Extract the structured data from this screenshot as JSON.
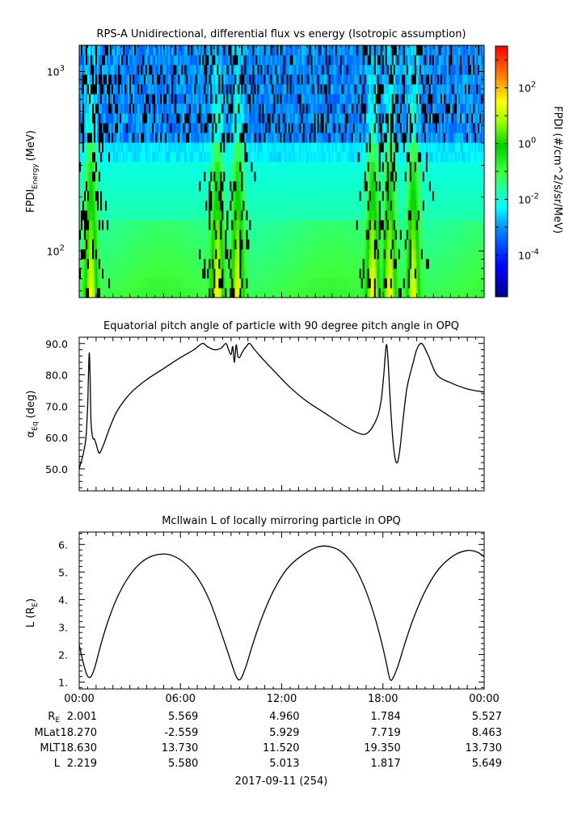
{
  "figure": {
    "date_label": "2017-09-11 (254)",
    "x_ticks": [
      "00:00",
      "06:00",
      "12:00",
      "18:00",
      "00:00"
    ]
  },
  "footer": {
    "rows": [
      {
        "label": "R",
        "label_sub": "E",
        "values": [
          "2.001",
          "5.569",
          "4.960",
          "1.784",
          "5.527"
        ]
      },
      {
        "label": "MLat",
        "label_sub": "",
        "values": [
          "18.270",
          "-2.559",
          "5.929",
          "7.719",
          "8.463"
        ]
      },
      {
        "label": "MLT",
        "label_sub": "",
        "values": [
          "18.630",
          "13.730",
          "11.520",
          "19.350",
          "13.730"
        ]
      },
      {
        "label": "L",
        "label_sub": "",
        "values": [
          "2.219",
          "5.580",
          "5.013",
          "1.817",
          "5.649"
        ]
      }
    ]
  },
  "chart_data": [
    {
      "type": "heatmap",
      "title": "RPS-A Unidirectional, differential flux vs energy (Isotropic assumption)",
      "ylabel": "FPDI",
      "ylabel_sub": "Energy",
      "ylabel_unit": "(MeV)",
      "yscale": "log",
      "ylim": [
        55,
        1400
      ],
      "y_ticks": [
        {
          "value": 100,
          "base": "10",
          "exp": "2"
        },
        {
          "value": 1000,
          "base": "10",
          "exp": "3"
        }
      ],
      "colorbar": {
        "label": "FPDI (#/cm^2/s/sr/MeV)",
        "scale": "log",
        "range_exp": [
          -5.5,
          3.5
        ],
        "ticks": [
          {
            "exp": 2,
            "base": "10",
            "sup": "2"
          },
          {
            "exp": 0,
            "base": "10",
            "sup": "0"
          },
          {
            "exp": -2,
            "base": "10",
            "sup": "-2"
          },
          {
            "exp": -4,
            "base": "10",
            "sup": "-4"
          }
        ]
      },
      "passes_hours": [
        0.7,
        8.2,
        9.4,
        17.4,
        18.4,
        19.8
      ],
      "description_values": "Flux high (10^0 to 10^1) at low energies near perigee passes, ~10^-1 across mid energies, ~10^-3 at highest energies with many fill gaps"
    },
    {
      "type": "line",
      "title": "Equatorial pitch angle of particle with 90 degree pitch angle in OPQ",
      "ylabel": "α",
      "ylabel_sub": "Eq",
      "ylabel_unit": "(deg)",
      "ylim": [
        43,
        92
      ],
      "y_ticks": [
        50,
        60,
        70,
        80,
        90
      ],
      "x_hours": [
        0,
        0.1,
        0.25,
        0.4,
        0.5,
        0.55,
        0.6,
        0.65,
        0.7,
        0.8,
        0.9,
        1.0,
        1.1,
        1.2,
        1.35,
        1.5,
        1.8,
        2.2,
        2.7,
        3.2,
        4.0,
        5.0,
        6.0,
        6.8,
        7.3,
        7.6,
        8.0,
        8.4,
        8.7,
        8.85,
        9.0,
        9.1,
        9.2,
        9.3,
        9.4,
        9.5,
        9.6,
        9.75,
        9.9,
        10.1,
        10.4,
        10.8,
        11.5,
        12.5,
        13.5,
        14.5,
        15.5,
        16.3,
        16.8,
        17.1,
        17.4,
        17.7,
        17.9,
        18.05,
        18.2,
        18.3,
        18.4,
        18.55,
        18.7,
        18.85,
        19.0,
        19.2,
        19.4,
        19.6,
        19.8,
        20.0,
        20.3,
        20.7,
        21.2,
        22.0,
        23.0,
        24.0
      ],
      "y_values": [
        50.0,
        52.0,
        55.0,
        60.0,
        70.0,
        80.0,
        87.0,
        78.0,
        65.0,
        60.0,
        59.5,
        58.0,
        56.0,
        55.0,
        56.5,
        58.5,
        63.0,
        68.0,
        72.0,
        75.0,
        78.5,
        82.0,
        85.5,
        88.0,
        90.0,
        89.0,
        88.0,
        88.5,
        90.0,
        88.0,
        86.5,
        89.0,
        84.0,
        89.5,
        86.0,
        85.5,
        86.5,
        88.0,
        89.0,
        90.0,
        88.0,
        85.5,
        81.5,
        76.0,
        71.5,
        68.0,
        64.5,
        62.0,
        61.0,
        61.5,
        63.5,
        67.0,
        72.0,
        80.0,
        89.5,
        85.0,
        75.0,
        62.0,
        54.0,
        52.0,
        56.0,
        66.0,
        75.0,
        80.0,
        84.0,
        88.0,
        90.0,
        86.0,
        80.0,
        77.5,
        75.5,
        74.5
      ]
    },
    {
      "type": "line",
      "title": "McIlwain L of locally mirroring particle in OPQ",
      "ylabel": "L (R",
      "ylabel_sub": "E",
      "ylabel_unit": ")",
      "ylim": [
        0.75,
        6.45
      ],
      "y_ticks": [
        1,
        2,
        3,
        4,
        5,
        6
      ],
      "x_hours": [
        0,
        0.2,
        0.4,
        0.55,
        0.7,
        0.85,
        1.0,
        1.3,
        1.7,
        2.2,
        2.8,
        3.5,
        4.2,
        4.9,
        5.5,
        6.2,
        7.0,
        7.7,
        8.3,
        8.8,
        9.15,
        9.35,
        9.5,
        9.65,
        9.9,
        10.3,
        10.8,
        11.5,
        12.3,
        13.2,
        14.2,
        15.0,
        15.7,
        16.4,
        17.0,
        17.5,
        17.9,
        18.2,
        18.35,
        18.45,
        18.6,
        18.9,
        19.3,
        19.8,
        20.5,
        21.3,
        22.2,
        23.0,
        23.6,
        24.0
      ],
      "y_values": [
        2.35,
        1.8,
        1.35,
        1.18,
        1.2,
        1.4,
        1.7,
        2.4,
        3.2,
        4.0,
        4.7,
        5.25,
        5.55,
        5.65,
        5.6,
        5.35,
        4.8,
        4.0,
        3.0,
        2.1,
        1.45,
        1.15,
        1.08,
        1.2,
        1.6,
        2.4,
        3.3,
        4.3,
        5.1,
        5.6,
        5.92,
        5.9,
        5.65,
        5.1,
        4.3,
        3.4,
        2.5,
        1.7,
        1.25,
        1.07,
        1.15,
        1.6,
        2.4,
        3.3,
        4.3,
        5.1,
        5.6,
        5.78,
        5.72,
        5.55
      ]
    }
  ]
}
